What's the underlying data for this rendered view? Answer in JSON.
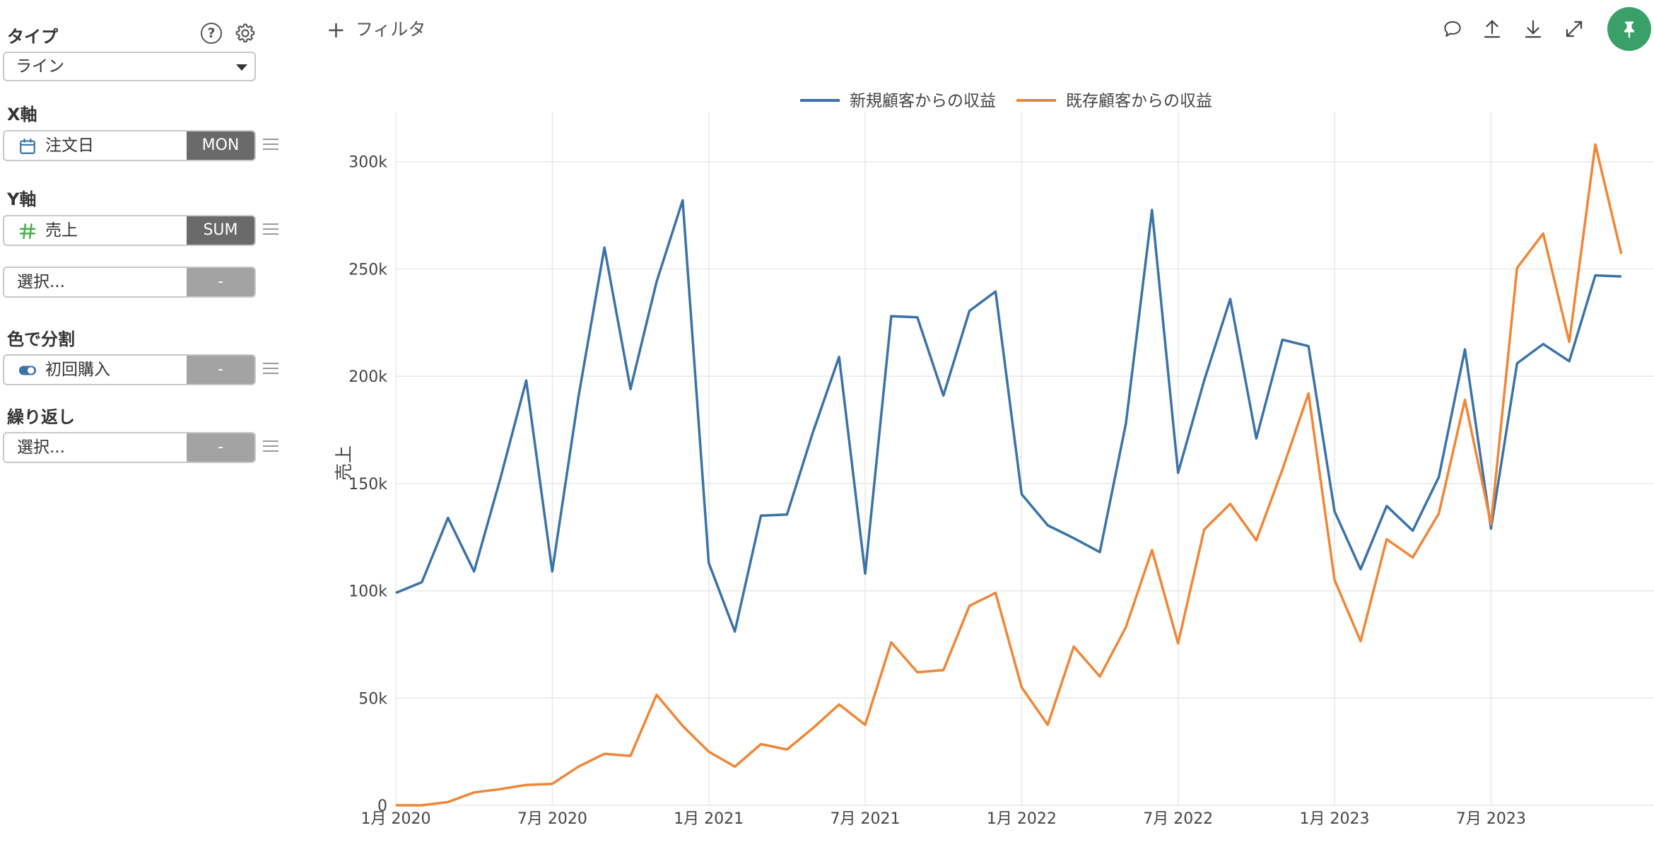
{
  "sidebar": {
    "type_label": "タイプ",
    "type_value": "ライン",
    "x_label": "X軸",
    "x_field": "注文日",
    "x_agg": "MON",
    "y_label": "Y軸",
    "y_field": "売上",
    "y_agg": "SUM",
    "y2_placeholder": "選択...",
    "y2_agg": "-",
    "color_label": "色で分割",
    "color_field": "初回購入",
    "color_agg": "-",
    "repeat_label": "繰り返し",
    "repeat_placeholder": "選択...",
    "repeat_agg": "-"
  },
  "toolbar": {
    "filter_label": "フィルタ",
    "icons": [
      "comment-icon",
      "upload-icon",
      "download-icon",
      "expand-icon",
      "pin-icon"
    ]
  },
  "colors": {
    "new": "#3a73a8",
    "existing": "#ef8636",
    "pin": "#3aa06a"
  },
  "chart_data": {
    "type": "line",
    "ylabel": "売上",
    "xlabel": "",
    "ylim": [
      0,
      320000
    ],
    "yticks": [
      "0",
      "50k",
      "100k",
      "150k",
      "200k",
      "250k",
      "300k"
    ],
    "xticks": [
      "1月 2020",
      "7月 2020",
      "1月 2021",
      "7月 2021",
      "1月 2022",
      "7月 2022",
      "1月 2023",
      "7月 2023"
    ],
    "legend": "top-center",
    "grid": true,
    "series": [
      {
        "name": "新規顧客からの収益",
        "color": "#3a73a8",
        "values": [
          99000,
          104000,
          134000,
          109000,
          152000,
          198000,
          109000,
          190000,
          260000,
          194000,
          244000,
          282000,
          113000,
          81000,
          135000,
          135500,
          174000,
          209000,
          108000,
          228000,
          227500,
          191000,
          230500,
          239500,
          145000,
          130500,
          124500,
          118000,
          178000,
          277500,
          155000,
          198000,
          236000,
          171000,
          217000,
          214000,
          137000,
          110000,
          139500,
          128000,
          153000,
          212500,
          129000,
          206000,
          215000,
          207000,
          247000,
          246500
        ]
      },
      {
        "name": "既存顧客からの収益",
        "color": "#ef8636",
        "values": [
          0,
          0,
          1500,
          6000,
          7500,
          9500,
          10000,
          18000,
          24000,
          23000,
          51500,
          37000,
          25000,
          18000,
          28500,
          26000,
          36000,
          47000,
          37500,
          76000,
          62000,
          63000,
          93000,
          99000,
          55000,
          37500,
          74000,
          60000,
          83000,
          119000,
          75500,
          128500,
          140500,
          123500,
          156500,
          192000,
          105000,
          76500,
          124000,
          115500,
          136000,
          189000,
          131000,
          250500,
          266500,
          216000,
          308000,
          257000
        ]
      }
    ]
  }
}
